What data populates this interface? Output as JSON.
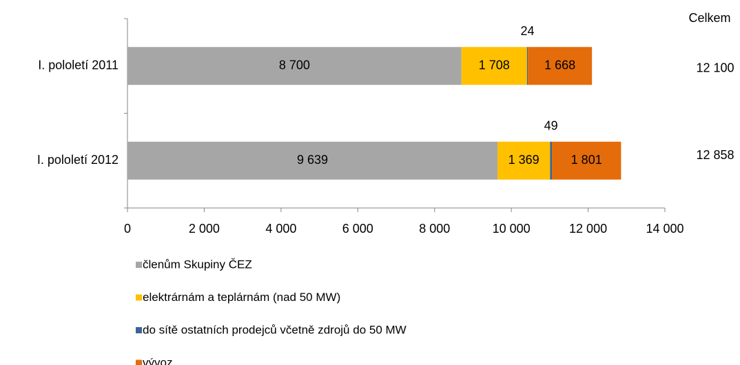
{
  "chart_data": {
    "type": "bar",
    "orientation": "horizontal",
    "stacked": true,
    "categories": [
      "I. pololetí 2011",
      "I. pololetí 2012"
    ],
    "series": [
      {
        "name": "členům Skupiny ČEZ",
        "color": "#a6a6a6",
        "values": [
          8700,
          9639
        ],
        "value_labels": [
          "8 700",
          "9 639"
        ]
      },
      {
        "name": "elektrárnám a teplárnám (nad 50 MW)",
        "color": "#ffc000",
        "values": [
          1708,
          1369
        ],
        "value_labels": [
          "1 708",
          "1 369"
        ]
      },
      {
        "name": "do sítě ostatních prodejců včetně zdrojů do 50 MW",
        "color": "#3c6496",
        "values": [
          24,
          49
        ]
      },
      {
        "name": "vývoz",
        "color": "#e46c0a",
        "values": [
          1668,
          1801
        ],
        "value_labels": [
          "1 668",
          "1 801"
        ]
      }
    ],
    "totals": {
      "label": "Celkem",
      "values": [
        12100,
        12858
      ],
      "value_labels": [
        "12 100",
        "12 858"
      ]
    },
    "xlim": [
      0,
      14000
    ],
    "xticks": [
      0,
      {
        "value": 2000,
        "label": "2 000"
      },
      {
        "value": 4000,
        "label": "4 000"
      },
      {
        "value": 6000,
        "label": "6 000"
      },
      {
        "value": 8000,
        "label": "8 000"
      },
      {
        "value": 10000,
        "label": "10 000"
      },
      {
        "value": 12000,
        "label": "12 000"
      },
      {
        "value": 14000,
        "label": "14 000"
      }
    ],
    "legend": "bottom"
  }
}
